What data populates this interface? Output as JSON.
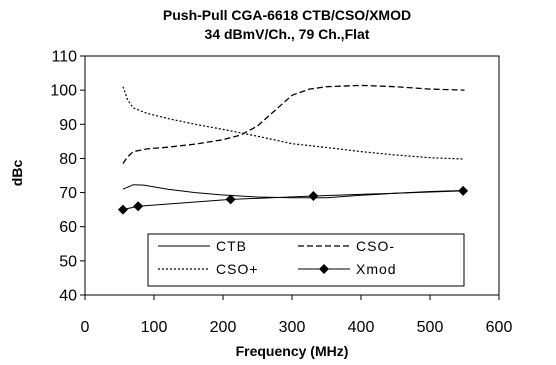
{
  "chart_data": {
    "type": "line",
    "title": "Push-Pull CGA-6618 CTB/CSO/XMOD",
    "subtitle": "34 dBmV/Ch., 79 Ch.,Flat",
    "xlabel": "Frequency (MHz)",
    "ylabel": "dBc",
    "xlim": [
      0,
      600
    ],
    "ylim": [
      40,
      110
    ],
    "xticks": [
      0,
      100,
      200,
      300,
      400,
      500,
      600
    ],
    "yticks": [
      40,
      50,
      60,
      70,
      80,
      90,
      100,
      110
    ],
    "legend_position": "lower-center",
    "series": [
      {
        "name": "CTB",
        "style": "solid",
        "color": "#000000",
        "points": [
          [
            55,
            71
          ],
          [
            70,
            72.3
          ],
          [
            85,
            72.2
          ],
          [
            120,
            71
          ],
          [
            160,
            70
          ],
          [
            200,
            69.3
          ],
          [
            250,
            68.7
          ],
          [
            300,
            68.5
          ],
          [
            350,
            68.5
          ],
          [
            400,
            69.2
          ],
          [
            450,
            69.8
          ],
          [
            500,
            70.3
          ],
          [
            550,
            70.6
          ]
        ]
      },
      {
        "name": "CSO-",
        "style": "dashed",
        "color": "#000000",
        "points": [
          [
            55,
            78.5
          ],
          [
            62,
            80.5
          ],
          [
            70,
            82
          ],
          [
            90,
            82.8
          ],
          [
            120,
            83.3
          ],
          [
            160,
            84.2
          ],
          [
            200,
            85.5
          ],
          [
            225,
            86.8
          ],
          [
            250,
            89.5
          ],
          [
            275,
            94
          ],
          [
            300,
            98.5
          ],
          [
            325,
            100.3
          ],
          [
            350,
            101
          ],
          [
            400,
            101.4
          ],
          [
            450,
            101
          ],
          [
            500,
            100.3
          ],
          [
            550,
            100
          ]
        ]
      },
      {
        "name": "CSO+",
        "style": "dotted",
        "color": "#000000",
        "points": [
          [
            55,
            101
          ],
          [
            62,
            97
          ],
          [
            70,
            94.8
          ],
          [
            90,
            93.2
          ],
          [
            120,
            91.7
          ],
          [
            160,
            90
          ],
          [
            200,
            88.5
          ],
          [
            250,
            86.5
          ],
          [
            300,
            84.3
          ],
          [
            350,
            83.2
          ],
          [
            400,
            82
          ],
          [
            450,
            81
          ],
          [
            500,
            80.2
          ],
          [
            550,
            79.8
          ]
        ]
      },
      {
        "name": "Xmod",
        "style": "solid-diamond",
        "color": "#000000",
        "points": [
          [
            55,
            65
          ],
          [
            77,
            66
          ],
          [
            211,
            68
          ],
          [
            331,
            69
          ],
          [
            548,
            70.5
          ]
        ]
      }
    ]
  }
}
